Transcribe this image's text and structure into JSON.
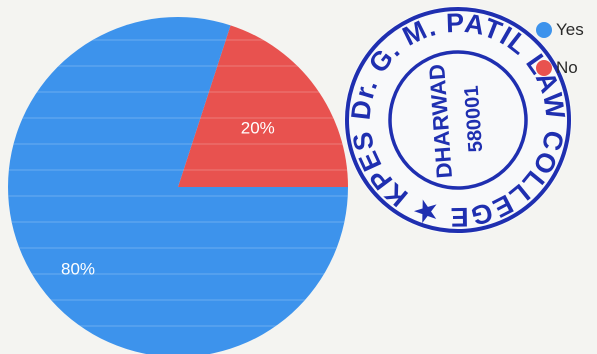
{
  "chart_data": {
    "type": "pie",
    "categories": [
      "Yes",
      "No"
    ],
    "values": [
      80,
      20
    ],
    "colors": [
      "#3d93ec",
      "#e8524f"
    ],
    "data_labels": [
      "80%",
      "20%"
    ],
    "legend": "right"
  },
  "stamp": {
    "text": "KPES's Dr. G. M. PATIL LAW COLLEGE",
    "city": "DHARWAD",
    "pin": "580001",
    "color": "#1f2fb0"
  }
}
